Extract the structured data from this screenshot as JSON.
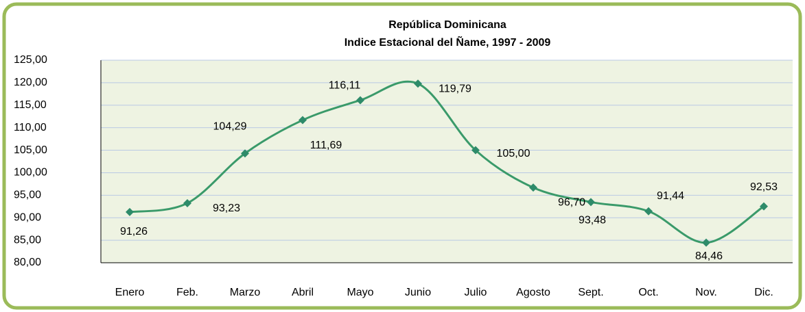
{
  "chart_data": {
    "type": "line",
    "title": "República  Dominicana",
    "subtitle": "Indice Estacional  del Ñame,  1997 - 2009",
    "categories": [
      "Enero",
      "Feb.",
      "Marzo",
      "Abril",
      "Mayo",
      "Junio",
      "Julio",
      "Agosto",
      "Sept.",
      "Oct.",
      "Nov.",
      "Dic."
    ],
    "series": [
      {
        "color": "#3a9a6a",
        "values": [
          91.26,
          93.23,
          104.29,
          111.69,
          116.11,
          119.79,
          105.0,
          96.7,
          93.48,
          91.44,
          84.46,
          92.53
        ],
        "value_labels": [
          "91,26",
          "93,23",
          "104,29",
          "111,69",
          "116,11",
          "119,79",
          "105,00",
          "96,70",
          "93,48",
          "91,44",
          "84,46",
          "92,53"
        ]
      }
    ],
    "ylim": [
      80,
      125
    ],
    "yticks": [
      {
        "value": 80,
        "label": "80,00"
      },
      {
        "value": 85,
        "label": "85,00"
      },
      {
        "value": 90,
        "label": "90,00"
      },
      {
        "value": 95,
        "label": "95,00"
      },
      {
        "value": 100,
        "label": "100,00"
      },
      {
        "value": 105,
        "label": "105,00"
      },
      {
        "value": 110,
        "label": "110,00"
      },
      {
        "value": 115,
        "label": "115,00"
      },
      {
        "value": 120,
        "label": "120,00"
      },
      {
        "value": 125,
        "label": "125,00"
      }
    ],
    "grid": true
  }
}
